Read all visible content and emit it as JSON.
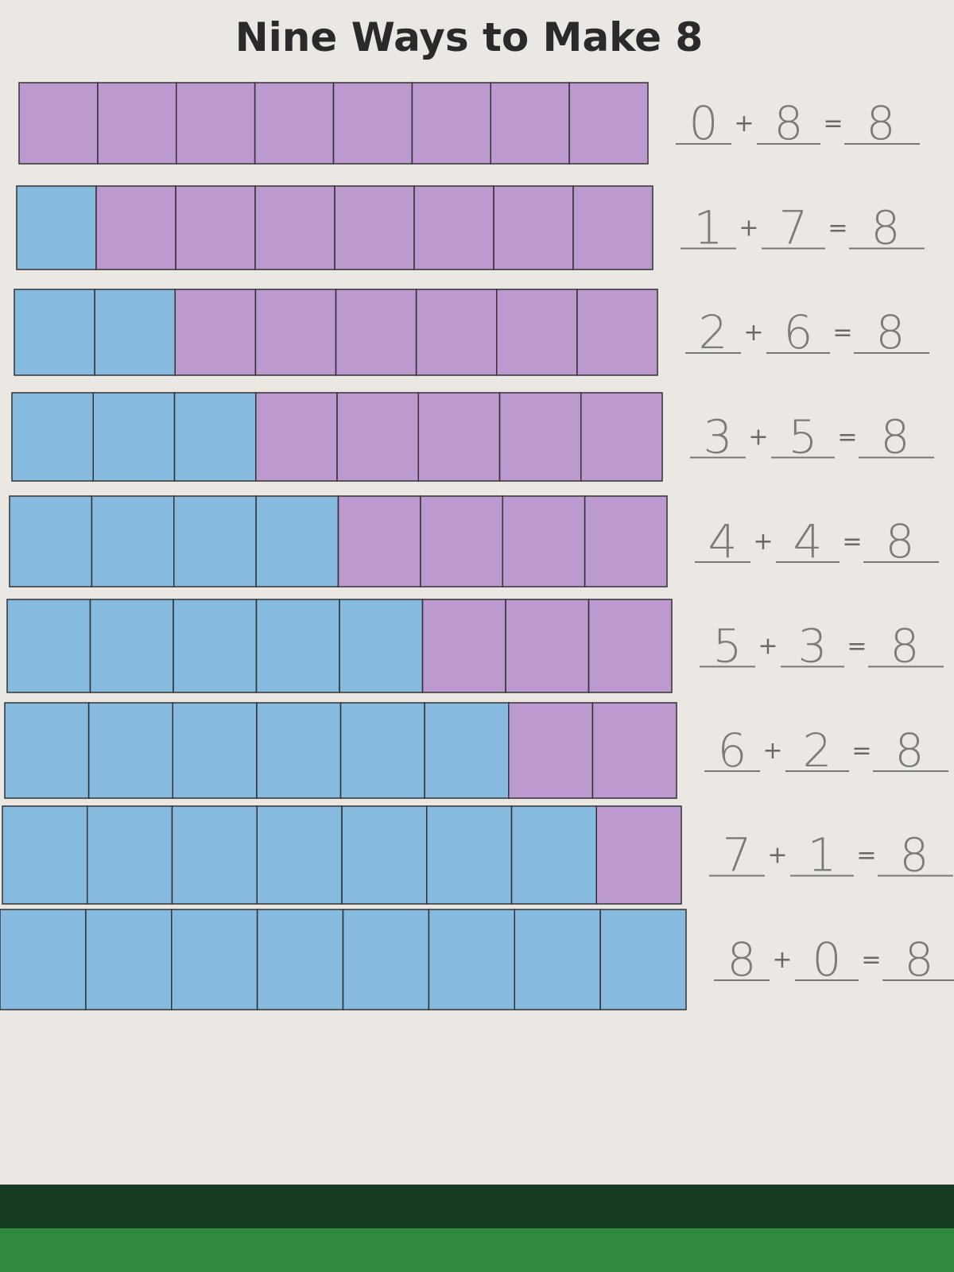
{
  "header": {
    "title": "Nine Ways to Make 8"
  },
  "plus": "+",
  "equals": "=",
  "colors": {
    "first": "#5ea8dc",
    "second": "#a97ac8"
  },
  "rows": [
    {
      "a": 0,
      "b": 8,
      "sum": 8
    },
    {
      "a": 1,
      "b": 7,
      "sum": 8
    },
    {
      "a": 2,
      "b": 6,
      "sum": 8
    },
    {
      "a": 3,
      "b": 5,
      "sum": 8
    },
    {
      "a": 4,
      "b": 4,
      "sum": 8
    },
    {
      "a": 5,
      "b": 3,
      "sum": 8
    },
    {
      "a": 6,
      "b": 2,
      "sum": 8
    },
    {
      "a": 7,
      "b": 1,
      "sum": 8
    },
    {
      "a": 8,
      "b": 0,
      "sum": 8
    }
  ]
}
